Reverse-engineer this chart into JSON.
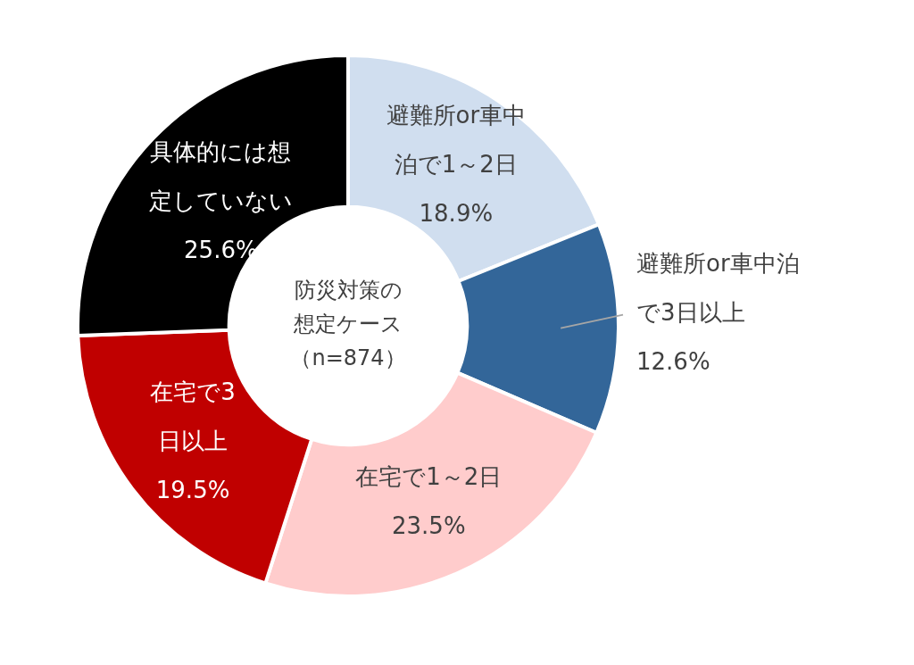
{
  "chart_data": {
    "type": "donut",
    "title": "防災対策の想定ケース",
    "subtitle": "（n=874）",
    "categories": [
      "避難所or車中泊で1～2日",
      "避難所or車中泊で3日以上",
      "在宅で1～2日",
      "在宅で3日以上",
      "具体的には想定していない"
    ],
    "values": [
      18.9,
      12.6,
      23.5,
      19.5,
      25.6
    ],
    "value_labels": [
      "18.9%",
      "12.6%",
      "23.5%",
      "19.5%",
      "25.6%"
    ],
    "colors": [
      "#d0deef",
      "#336699",
      "#ffcccc",
      "#c00000",
      "#000000"
    ],
    "legend": false
  }
}
